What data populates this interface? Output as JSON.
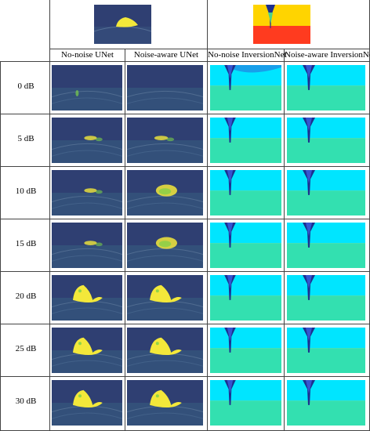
{
  "header": {
    "columns": [
      "No-noise UNet",
      "Noise-aware UNet",
      "No-noise InversionNet",
      "Noise-aware InversionNet"
    ]
  },
  "rows": [
    {
      "label": "0 dB"
    },
    {
      "label": "5 dB"
    },
    {
      "label": "10 dB"
    },
    {
      "label": "15 dB"
    },
    {
      "label": "20 dB"
    },
    {
      "label": "25 dB"
    },
    {
      "label": "30 dB"
    }
  ],
  "colors": {
    "seismic_bg": "#2f3f72",
    "seismic_mid": "#3b6f8a",
    "anomaly": "#f3e83a",
    "velocity_top": "#00e5ff",
    "velocity_bottom": "#33e0b0",
    "velocity_channel": "#1c2f8f",
    "gt_top": "#ffd400",
    "gt_bottom": "#ff3b1f"
  }
}
